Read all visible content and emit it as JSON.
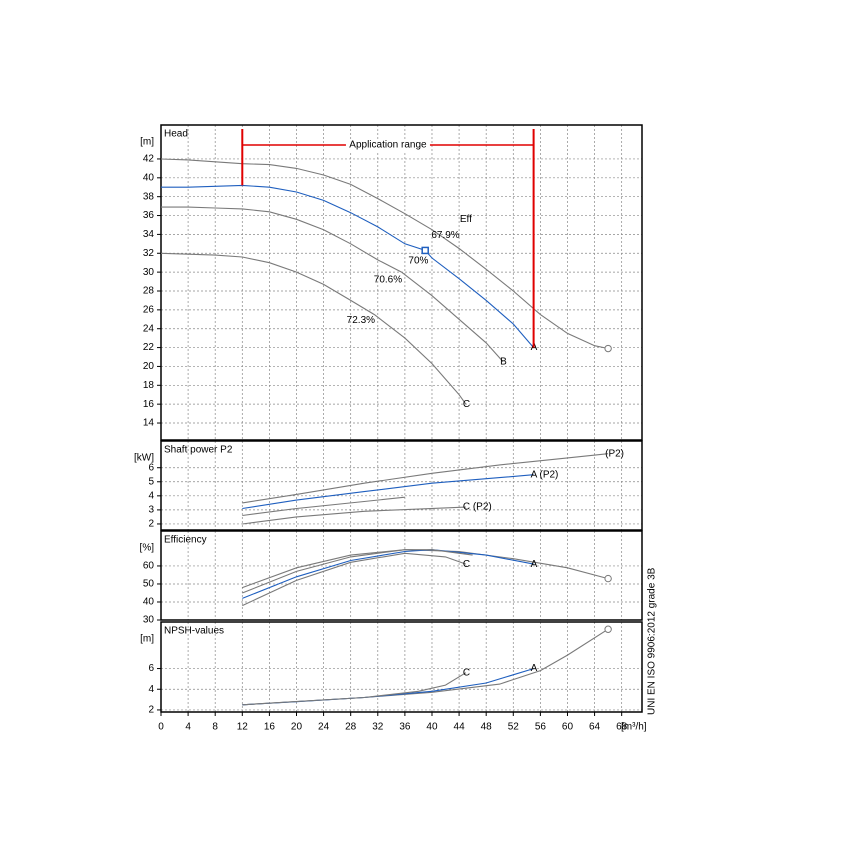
{
  "chart_data": [
    {
      "type": "line",
      "title": "Head",
      "unit": "[m]",
      "ylim": [
        12.2,
        45.6
      ],
      "yticks": [
        14,
        16,
        18,
        20,
        22,
        24,
        26,
        28,
        30,
        32,
        34,
        36,
        38,
        40,
        42
      ],
      "grid": true,
      "application_range": {
        "label": "Application range",
        "x": [
          12,
          55
        ],
        "color": "#e00000"
      },
      "series": [
        {
          "color": "#7a7a7a",
          "x": [
            0,
            4,
            8,
            12,
            16,
            20,
            24,
            28,
            32,
            36,
            40,
            44,
            48,
            52,
            56,
            60,
            64,
            66
          ],
          "values": [
            42,
            41.9,
            41.7,
            41.5,
            41.4,
            41,
            40.3,
            39.3,
            37.8,
            36.2,
            34.5,
            32.5,
            30.3,
            28,
            25.5,
            23.5,
            22.2,
            21.9
          ]
        },
        {
          "name": "A",
          "color": "#1f5fbf",
          "x": [
            0,
            4,
            8,
            12,
            16,
            20,
            24,
            28,
            32,
            36,
            39,
            40,
            44,
            48,
            52,
            55
          ],
          "values": [
            39,
            39,
            39.1,
            39.2,
            39,
            38.5,
            37.6,
            36.3,
            34.8,
            33,
            32.3,
            31.5,
            29.3,
            27,
            24.5,
            22
          ]
        },
        {
          "name": "B",
          "color": "#7a7a7a",
          "x": [
            0,
            4,
            8,
            12,
            16,
            20,
            24,
            28,
            32,
            35.5,
            40,
            44,
            48,
            50.5
          ],
          "values": [
            36.9,
            36.9,
            36.8,
            36.7,
            36.4,
            35.6,
            34.5,
            33,
            31.3,
            30,
            27.5,
            25,
            22.5,
            20.5
          ]
        },
        {
          "name": "C",
          "color": "#7a7a7a",
          "x": [
            0,
            4,
            8,
            12,
            16,
            20,
            24,
            28,
            31.5,
            36,
            40,
            44,
            45
          ],
          "values": [
            32,
            31.9,
            31.8,
            31.6,
            31,
            30,
            28.7,
            27,
            25.5,
            23,
            20.3,
            17,
            16
          ]
        }
      ],
      "operating_point": {
        "x": 39,
        "y": 32.3,
        "color": "#1f5fbf"
      },
      "annotations": [
        {
          "text": "Eff",
          "x": 45,
          "y": 35.6,
          "color": "#7a7a7a"
        },
        {
          "text": "67.9%",
          "x": 42,
          "y": 33.9,
          "color": "#7a7a7a"
        },
        {
          "text": "70%",
          "x": 38,
          "y": 31.2,
          "color": "#1f5fbf"
        },
        {
          "text": "70.6%",
          "x": 33.5,
          "y": 29.2,
          "color": "#7a7a7a"
        },
        {
          "text": "72.3%",
          "x": 29.5,
          "y": 24.9,
          "color": "#7a7a7a"
        }
      ]
    },
    {
      "type": "line",
      "title": "Shaft power P2",
      "unit": "[kW]",
      "ylim": [
        1.57,
        7.9
      ],
      "yticks": [
        2,
        3,
        4,
        5,
        6
      ],
      "grid": true,
      "series": [
        {
          "name": "(P2)",
          "color": "#7a7a7a",
          "x": [
            12,
            20,
            30,
            40,
            50,
            60,
            66
          ],
          "values": [
            3.5,
            4.1,
            4.9,
            5.6,
            6.2,
            6.7,
            7.0
          ]
        },
        {
          "name": "A (P2)",
          "color": "#1f5fbf",
          "x": [
            12,
            20,
            30,
            40,
            50,
            55
          ],
          "values": [
            3.1,
            3.7,
            4.3,
            4.9,
            5.3,
            5.5
          ]
        },
        {
          "color": "#7a7a7a",
          "x": [
            12,
            20,
            30,
            36
          ],
          "values": [
            2.6,
            3.1,
            3.6,
            3.9
          ]
        },
        {
          "name": "C (P2)",
          "color": "#7a7a7a",
          "x": [
            12,
            20,
            30,
            45
          ],
          "values": [
            2.0,
            2.5,
            2.9,
            3.2
          ]
        }
      ]
    },
    {
      "type": "line",
      "title": "Efficiency",
      "unit": "[%]",
      "ylim": [
        30,
        79.4
      ],
      "yticks": [
        30,
        40,
        50,
        60
      ],
      "grid": true,
      "series": [
        {
          "color": "#7a7a7a",
          "x": [
            12,
            20,
            28,
            36,
            44,
            52,
            60,
            66
          ],
          "values": [
            48,
            59,
            66,
            69,
            68,
            64,
            59,
            53
          ]
        },
        {
          "name": "A",
          "color": "#1f5fbf",
          "x": [
            12,
            20,
            28,
            36,
            40,
            48,
            55
          ],
          "values": [
            42,
            54,
            63,
            68,
            69,
            66,
            61
          ]
        },
        {
          "color": "#7a7a7a",
          "x": [
            12,
            20,
            28,
            36,
            40,
            46
          ],
          "values": [
            45,
            57,
            65,
            69,
            69,
            66
          ]
        },
        {
          "name": "C",
          "color": "#7a7a7a",
          "x": [
            12,
            20,
            28,
            36,
            42,
            45
          ],
          "values": [
            38,
            52,
            62,
            67,
            65,
            61
          ]
        }
      ]
    },
    {
      "type": "line",
      "title": "NPSH-values",
      "unit": "[m]",
      "ylim": [
        1.8,
        10.5
      ],
      "yticks": [
        2,
        4,
        6
      ],
      "grid": true,
      "xlim": [
        0,
        71
      ],
      "xticks": [
        0,
        4,
        8,
        12,
        16,
        20,
        24,
        28,
        32,
        36,
        40,
        44,
        48,
        52,
        56,
        60,
        64,
        68
      ],
      "xlabel": "[m³/h]",
      "standard": "UNI EN ISO 9906:2012 grade 3B",
      "series": [
        {
          "color": "#7a7a7a",
          "x": [
            12,
            30,
            40,
            50,
            56,
            60,
            66
          ],
          "values": [
            2.5,
            3.2,
            3.7,
            4.5,
            5.8,
            7.3,
            9.8
          ]
        },
        {
          "name": "A",
          "color": "#1f5fbf",
          "x": [
            12,
            20,
            30,
            40,
            48,
            55
          ],
          "values": [
            2.5,
            2.8,
            3.2,
            3.8,
            4.6,
            6.0
          ]
        },
        {
          "name": "C",
          "color": "#7a7a7a",
          "x": [
            12,
            30,
            38,
            42,
            45
          ],
          "values": [
            2.5,
            3.2,
            3.8,
            4.4,
            5.6
          ]
        }
      ]
    }
  ]
}
